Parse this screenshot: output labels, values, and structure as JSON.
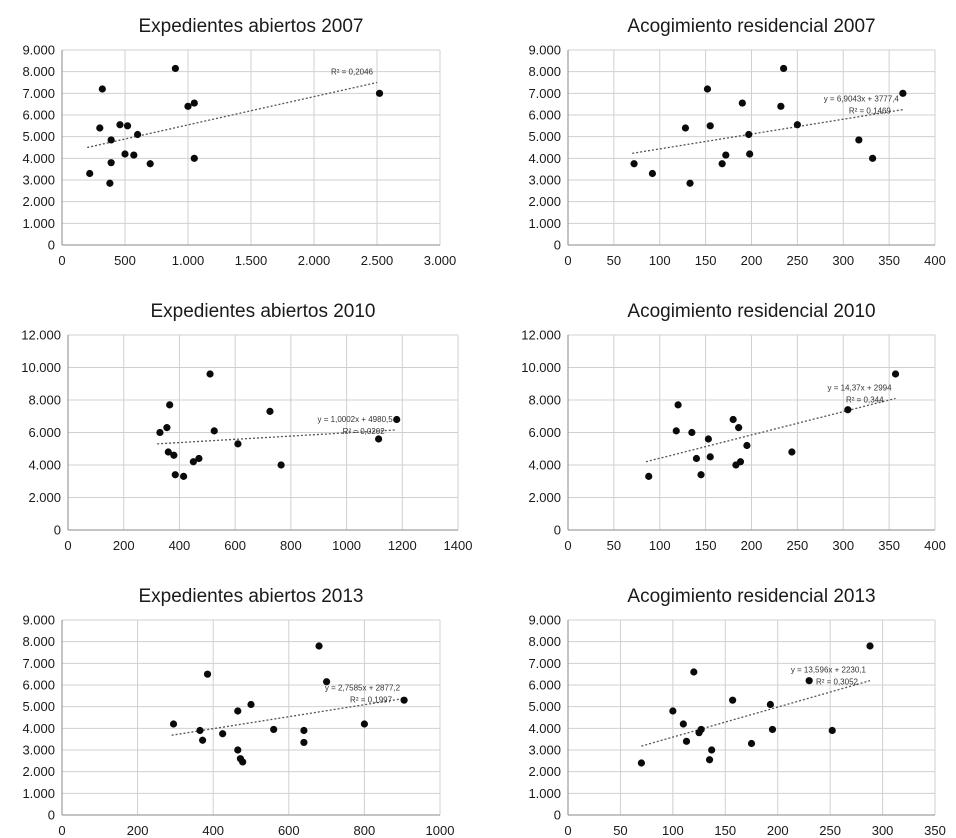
{
  "chart_data": [
    {
      "type": "scatter",
      "title": "Expedientes abiertos 2007",
      "xlim": [
        0,
        3000
      ],
      "ylim": [
        0,
        9000
      ],
      "xticks": [
        "0",
        "500",
        "1.000",
        "1.500",
        "2.000",
        "2.500",
        "3.000"
      ],
      "yticks": [
        "0",
        "1.000",
        "2.000",
        "3.000",
        "4.000",
        "5.000",
        "6.000",
        "7.000",
        "8.000",
        "9.000"
      ],
      "grid": true,
      "points": [
        [
          220,
          3300
        ],
        [
          300,
          5400
        ],
        [
          320,
          7200
        ],
        [
          380,
          2850
        ],
        [
          390,
          3800
        ],
        [
          390,
          4850
        ],
        [
          460,
          5550
        ],
        [
          500,
          4200
        ],
        [
          520,
          5500
        ],
        [
          570,
          4150
        ],
        [
          600,
          5100
        ],
        [
          700,
          3750
        ],
        [
          900,
          8150
        ],
        [
          1000,
          6400
        ],
        [
          1050,
          6550
        ],
        [
          1050,
          4000
        ],
        [
          2520,
          7000
        ]
      ],
      "trendline": {
        "x1": 200,
        "y1": 4500,
        "x2": 2500,
        "y2": 7500
      },
      "equation": "",
      "r2": "R² = 0,2046"
    },
    {
      "type": "scatter",
      "title": "Acogimiento residencial 2007",
      "xlim": [
        0,
        400
      ],
      "ylim": [
        0,
        9000
      ],
      "xticks": [
        "0",
        "50",
        "100",
        "150",
        "200",
        "250",
        "300",
        "350",
        "400"
      ],
      "yticks": [
        "0",
        "1.000",
        "2.000",
        "3.000",
        "4.000",
        "5.000",
        "6.000",
        "7.000",
        "8.000",
        "9.000"
      ],
      "grid": true,
      "points": [
        [
          72,
          3750
        ],
        [
          92,
          3300
        ],
        [
          128,
          5400
        ],
        [
          133,
          2850
        ],
        [
          152,
          7200
        ],
        [
          155,
          5500
        ],
        [
          168,
          3750
        ],
        [
          172,
          4150
        ],
        [
          190,
          6550
        ],
        [
          197,
          5100
        ],
        [
          198,
          4200
        ],
        [
          232,
          6400
        ],
        [
          235,
          8150
        ],
        [
          250,
          5550
        ],
        [
          317,
          4850
        ],
        [
          332,
          4000
        ],
        [
          365,
          7000
        ]
      ],
      "trendline": {
        "x1": 70,
        "y1": 4230,
        "x2": 365,
        "y2": 6250
      },
      "equation": "y = 6,9043x + 3777,4",
      "r2": "R² = 0,1469"
    },
    {
      "type": "scatter",
      "title": "Expedientes abiertos 2010",
      "xlim": [
        0,
        1400
      ],
      "ylim": [
        0,
        12000
      ],
      "xticks": [
        "0",
        "200",
        "400",
        "600",
        "800",
        "1000",
        "1200",
        "1400"
      ],
      "yticks": [
        "0",
        "2.000",
        "4.000",
        "6.000",
        "8.000",
        "10.000",
        "12.000"
      ],
      "grid": true,
      "points": [
        [
          330,
          6000
        ],
        [
          355,
          6300
        ],
        [
          360,
          4800
        ],
        [
          365,
          7700
        ],
        [
          380,
          4600
        ],
        [
          385,
          3400
        ],
        [
          415,
          3300
        ],
        [
          450,
          4200
        ],
        [
          470,
          4400
        ],
        [
          510,
          9600
        ],
        [
          525,
          6100
        ],
        [
          610,
          5300
        ],
        [
          725,
          7300
        ],
        [
          765,
          4000
        ],
        [
          1115,
          5600
        ],
        [
          1180,
          6800
        ]
      ],
      "trendline": {
        "x1": 320,
        "y1": 5300,
        "x2": 1180,
        "y2": 6160
      },
      "equation": "y = 1,0002x + 4980,5",
      "r2": "R² = 0,0202"
    },
    {
      "type": "scatter",
      "title": "Acogimiento residencial 2010",
      "xlim": [
        0,
        400
      ],
      "ylim": [
        0,
        12000
      ],
      "xticks": [
        "0",
        "50",
        "100",
        "150",
        "200",
        "250",
        "300",
        "350",
        "400"
      ],
      "yticks": [
        "0",
        "2.000",
        "4.000",
        "6.000",
        "8.000",
        "10.000",
        "12.000"
      ],
      "grid": true,
      "points": [
        [
          88,
          3300
        ],
        [
          118,
          6100
        ],
        [
          120,
          7700
        ],
        [
          135,
          6000
        ],
        [
          140,
          4400
        ],
        [
          145,
          3400
        ],
        [
          153,
          5600
        ],
        [
          155,
          4500
        ],
        [
          180,
          6800
        ],
        [
          183,
          4000
        ],
        [
          186,
          6300
        ],
        [
          188,
          4200
        ],
        [
          195,
          5200
        ],
        [
          244,
          4800
        ],
        [
          305,
          7400
        ],
        [
          357,
          9600
        ]
      ],
      "trendline": {
        "x1": 85,
        "y1": 4200,
        "x2": 357,
        "y2": 8100
      },
      "equation": "y = 14,37x + 2994",
      "r2": "R² = 0,344"
    },
    {
      "type": "scatter",
      "title": "Expedientes abiertos 2013",
      "xlim": [
        0,
        1000
      ],
      "ylim": [
        0,
        9000
      ],
      "xticks": [
        "0",
        "200",
        "400",
        "600",
        "800",
        "1000"
      ],
      "yticks": [
        "0",
        "1.000",
        "2.000",
        "3.000",
        "4.000",
        "5.000",
        "6.000",
        "7.000",
        "8.000",
        "9.000"
      ],
      "grid": true,
      "points": [
        [
          295,
          4200
        ],
        [
          365,
          3900
        ],
        [
          372,
          3450
        ],
        [
          385,
          6500
        ],
        [
          425,
          3750
        ],
        [
          465,
          3000
        ],
        [
          465,
          4800
        ],
        [
          472,
          2600
        ],
        [
          478,
          2450
        ],
        [
          500,
          5100
        ],
        [
          560,
          3950
        ],
        [
          640,
          3350
        ],
        [
          640,
          3900
        ],
        [
          680,
          7800
        ],
        [
          700,
          6150
        ],
        [
          800,
          4200
        ],
        [
          905,
          5300
        ]
      ],
      "trendline": {
        "x1": 290,
        "y1": 3680,
        "x2": 905,
        "y2": 5380
      },
      "equation": "y = 2,7585x + 2877,2",
      "r2": "R² = 0,1997"
    },
    {
      "type": "scatter",
      "title": "Acogimiento residencial 2013",
      "xlim": [
        0,
        350
      ],
      "ylim": [
        0,
        9000
      ],
      "xticks": [
        "0",
        "50",
        "100",
        "150",
        "200",
        "250",
        "300",
        "350"
      ],
      "yticks": [
        "0",
        "1.000",
        "2.000",
        "3.000",
        "4.000",
        "5.000",
        "6.000",
        "7.000",
        "8.000",
        "9.000"
      ],
      "grid": true,
      "points": [
        [
          70,
          2400
        ],
        [
          100,
          4800
        ],
        [
          110,
          4200
        ],
        [
          113,
          3400
        ],
        [
          120,
          6600
        ],
        [
          125,
          3800
        ],
        [
          127,
          3950
        ],
        [
          135,
          2550
        ],
        [
          137,
          3000
        ],
        [
          157,
          5300
        ],
        [
          175,
          3300
        ],
        [
          193,
          5100
        ],
        [
          195,
          3950
        ],
        [
          230,
          6200
        ],
        [
          252,
          3900
        ],
        [
          288,
          7800
        ]
      ],
      "trendline": {
        "x1": 70,
        "y1": 3180,
        "x2": 288,
        "y2": 6200
      },
      "equation": "y = 13,596x + 2230,1",
      "r2": "R² = 0,3052"
    }
  ]
}
